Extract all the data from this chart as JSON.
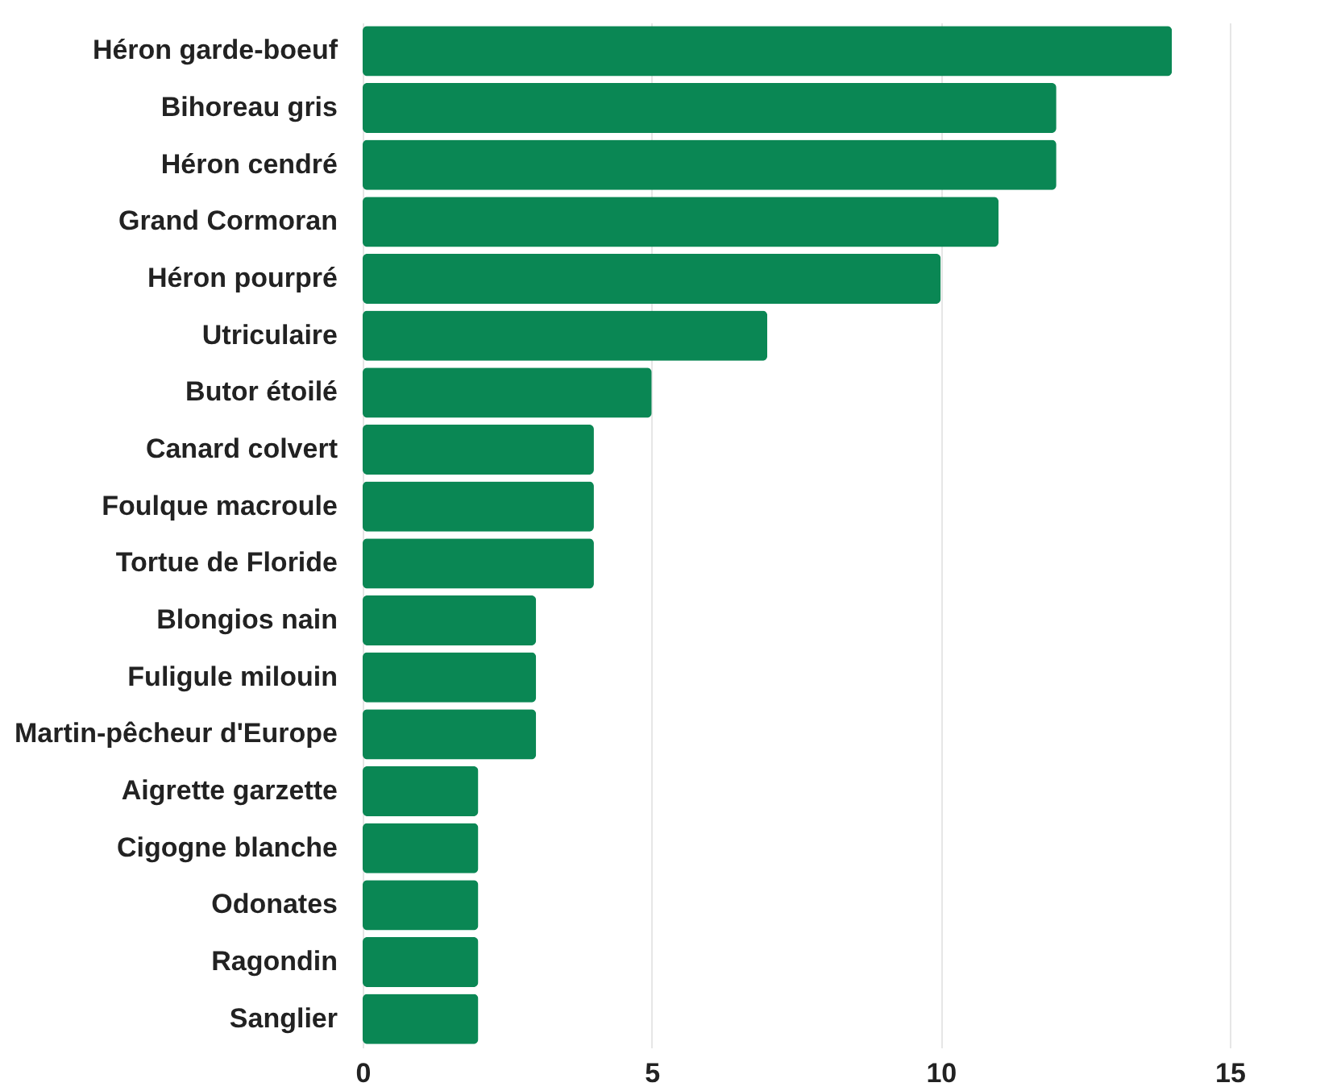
{
  "chart_data": {
    "type": "bar",
    "orientation": "horizontal",
    "categories": [
      "Héron garde-boeuf",
      "Bihoreau gris",
      "Héron cendré",
      "Grand Cormoran",
      "Héron pourpré",
      "Utriculaire",
      "Butor étoilé",
      "Canard colvert",
      "Foulque macroule",
      "Tortue de Floride",
      "Blongios nain",
      "Fuligule milouin",
      "Martin-pêcheur d'Europe",
      "Aigrette garzette",
      "Cigogne blanche",
      "Odonates",
      "Ragondin",
      "Sanglier"
    ],
    "values": [
      14,
      12,
      12,
      11,
      10,
      7,
      5,
      4,
      4,
      4,
      3,
      3,
      3,
      2,
      2,
      2,
      2,
      2
    ],
    "color": "#0a8754",
    "xlim": [
      0,
      15
    ],
    "xticks": [
      0,
      5,
      10,
      15
    ],
    "grid": "x"
  }
}
